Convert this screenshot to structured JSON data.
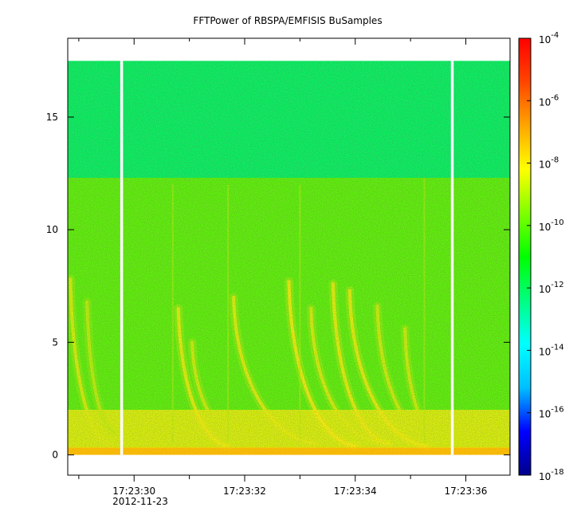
{
  "chart_data": {
    "type": "heatmap",
    "title": "FFTPower of RBSPA/EMFISIS  BuSamples",
    "xlabel": "",
    "ylabel": "",
    "x_date": "2012-11-23",
    "x_range": [
      "17:23:28.8",
      "17:23:36.8"
    ],
    "x_ticks": [
      "17:23:30",
      "17:23:32",
      "17:23:34",
      "17:23:36"
    ],
    "x_minor_ticks": [
      "17:23:29",
      "17:23:31",
      "17:23:33",
      "17:23:35"
    ],
    "y_range": [
      -0.9,
      18.5
    ],
    "y_ticks": [
      0,
      5,
      10,
      15
    ],
    "colorbar": {
      "scale": "log",
      "range": [
        1e-18,
        0.0001
      ],
      "tick_values": [
        0.0001,
        1e-06,
        1e-08,
        1e-10,
        1e-12,
        1e-14,
        1e-16,
        1e-18
      ],
      "tick_labels": [
        {
          "base": "10",
          "exp": "-4"
        },
        {
          "base": "10",
          "exp": "-6"
        },
        {
          "base": "10",
          "exp": "-8"
        },
        {
          "base": "10",
          "exp": "-10"
        },
        {
          "base": "10",
          "exp": "-12"
        },
        {
          "base": "10",
          "exp": "-14"
        },
        {
          "base": "10",
          "exp": "-16"
        },
        {
          "base": "10",
          "exp": "-18"
        }
      ],
      "colormap": [
        "#00008b",
        "#0000ff",
        "#00bfff",
        "#00ffff",
        "#00ff80",
        "#00ff00",
        "#80ff00",
        "#ffff00",
        "#ffa500",
        "#ff4500",
        "#ff0000"
      ]
    },
    "data_gaps": [
      {
        "start": "17:23:29.75",
        "end": "17:23:29.80"
      },
      {
        "start": "17:23:35.73",
        "end": "17:23:35.78"
      }
    ],
    "data_top_frequency": 17.5,
    "bands": [
      {
        "y_from": 12.3,
        "y_to": 17.5,
        "log_power": -12
      },
      {
        "y_from": 2.0,
        "y_to": 12.3,
        "log_power": -10
      },
      {
        "y_from": 0.3,
        "y_to": 2.0,
        "log_power": -8.6
      },
      {
        "y_from": 0.0,
        "y_to": 0.3,
        "log_power": -7.2
      }
    ],
    "chorus_elements": [
      {
        "x_top": "17:23:28.85",
        "y_top": 7.8,
        "x_bottom": "17:23:29.55",
        "y_bottom": 0.5,
        "log_power": -8.5
      },
      {
        "x_top": "17:23:29.15",
        "y_top": 6.8,
        "x_bottom": "17:23:29.65",
        "y_bottom": 1.0,
        "log_power": -8.8
      },
      {
        "x_top": "17:23:30.8",
        "y_top": 6.5,
        "x_bottom": "17:23:31.7",
        "y_bottom": 0.4,
        "log_power": -8.3
      },
      {
        "x_top": "17:23:31.05",
        "y_top": 5.0,
        "x_bottom": "17:23:32.0",
        "y_bottom": 0.6,
        "log_power": -8.6
      },
      {
        "x_top": "17:23:31.8",
        "y_top": 7.0,
        "x_bottom": "17:23:33.3",
        "y_bottom": 0.5,
        "log_power": -8.4
      },
      {
        "x_top": "17:23:32.8",
        "y_top": 7.7,
        "x_bottom": "17:23:34.0",
        "y_bottom": 0.4,
        "log_power": -8.2
      },
      {
        "x_top": "17:23:33.2",
        "y_top": 6.5,
        "x_bottom": "17:23:34.4",
        "y_bottom": 0.6,
        "log_power": -8.5
      },
      {
        "x_top": "17:23:33.6",
        "y_top": 7.6,
        "x_bottom": "17:23:34.6",
        "y_bottom": 0.5,
        "log_power": -8.3
      },
      {
        "x_top": "17:23:33.9",
        "y_top": 7.3,
        "x_bottom": "17:23:35.3",
        "y_bottom": 0.4,
        "log_power": -8.3
      },
      {
        "x_top": "17:23:34.4",
        "y_top": 6.6,
        "x_bottom": "17:23:35.5",
        "y_bottom": 0.5,
        "log_power": -8.6
      },
      {
        "x_top": "17:23:34.9",
        "y_top": 5.6,
        "x_bottom": "17:23:35.6",
        "y_bottom": 0.5,
        "log_power": -8.6
      }
    ],
    "vertical_streaks": [
      {
        "x": "17:23:30.7",
        "y_from": 0.5,
        "y_to": 12.0
      },
      {
        "x": "17:23:31.7",
        "y_from": 0.5,
        "y_to": 12.0
      },
      {
        "x": "17:23:33.0",
        "y_from": 0.5,
        "y_to": 12.0
      },
      {
        "x": "17:23:35.25",
        "y_from": 0.5,
        "y_to": 12.3
      }
    ]
  }
}
